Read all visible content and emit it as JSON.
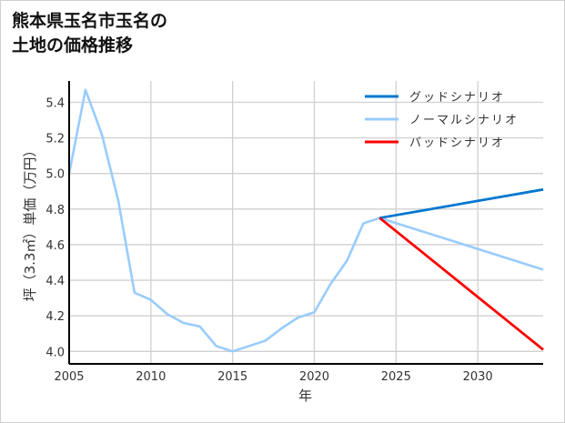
{
  "chart_data": {
    "type": "line",
    "title": "熊本県玉名市玉名の\n土地の価格推移",
    "xlabel": "年",
    "ylabel": "坪（3.3㎡）単価（万円）",
    "xlim": [
      2005,
      2034
    ],
    "ylim": [
      3.93,
      5.52
    ],
    "xticks": [
      2005,
      2010,
      2015,
      2020,
      2025,
      2030
    ],
    "yticks": [
      "4.0",
      "4.2",
      "4.4",
      "4.6",
      "4.8",
      "5.0",
      "5.2",
      "5.4"
    ],
    "grid": true,
    "legend_position": "top-right",
    "series": [
      {
        "name": "グッドシナリオ",
        "color": "#0077d0",
        "x": [
          2024,
          2034
        ],
        "y": [
          4.75,
          4.91
        ]
      },
      {
        "name": "ノーマルシナリオ",
        "color": "#99ccff",
        "x": [
          2005,
          2006,
          2007,
          2008,
          2009,
          2010,
          2011,
          2012,
          2013,
          2014,
          2015,
          2016,
          2017,
          2018,
          2019,
          2020,
          2021,
          2022,
          2023,
          2024,
          2034
        ],
        "y": [
          5.0,
          5.47,
          5.22,
          4.85,
          4.33,
          4.29,
          4.21,
          4.16,
          4.14,
          4.03,
          4.0,
          4.03,
          4.06,
          4.13,
          4.19,
          4.22,
          4.38,
          4.51,
          4.72,
          4.75,
          4.46
        ]
      },
      {
        "name": "バッドシナリオ",
        "color": "#ff0000",
        "x": [
          2024,
          2034
        ],
        "y": [
          4.75,
          4.01
        ]
      }
    ]
  }
}
